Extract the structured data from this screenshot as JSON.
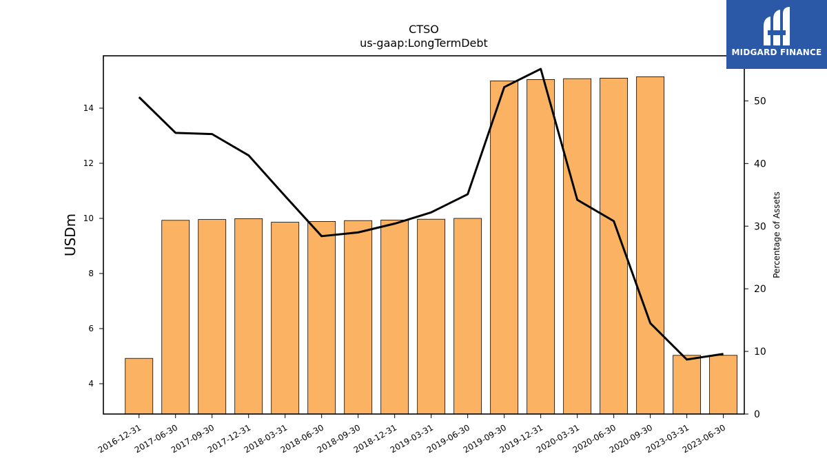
{
  "chart_data": {
    "type": "bar",
    "title": "CTSO",
    "subtitle": "us-gaap:LongTermDebt",
    "ylabel": "USDm",
    "ylabel_right": "Percentage of Assets",
    "ylim": [
      2.9,
      15.9
    ],
    "ylim_right": [
      0,
      57.2
    ],
    "yticks": [
      4,
      6,
      8,
      10,
      12,
      14
    ],
    "yticks_right": [
      0,
      10,
      20,
      30,
      40,
      50
    ],
    "categories": [
      "2016-12-31",
      "2017-06-30",
      "2017-09-30",
      "2017-12-31",
      "2018-03-31",
      "2018-06-30",
      "2018-09-30",
      "2018-12-31",
      "2019-03-31",
      "2019-06-30",
      "2019-09-30",
      "2019-12-31",
      "2020-03-31",
      "2020-06-30",
      "2020-09-30",
      "2023-03-31",
      "2023-06-30"
    ],
    "series": [
      {
        "type": "bar",
        "axis": "left",
        "values": [
          4.92,
          9.93,
          9.96,
          9.99,
          9.86,
          9.89,
          9.92,
          9.94,
          9.97,
          10.0,
          14.99,
          15.04,
          15.07,
          15.09,
          15.14,
          5.03,
          5.03
        ]
      },
      {
        "type": "line",
        "axis": "right",
        "values": [
          50.6,
          44.9,
          44.7,
          41.3,
          34.8,
          28.4,
          29.0,
          30.4,
          32.2,
          35.1,
          52.2,
          55.1,
          34.2,
          30.8,
          14.5,
          8.7,
          9.6
        ]
      }
    ],
    "colors": {
      "bar_fill": "#fbb363",
      "bar_edge": "#000000",
      "line": "#000000"
    },
    "grid": false,
    "legend": "none"
  },
  "logo": {
    "text": "MIDGARD FINANCE",
    "background": "#2b59a8"
  }
}
